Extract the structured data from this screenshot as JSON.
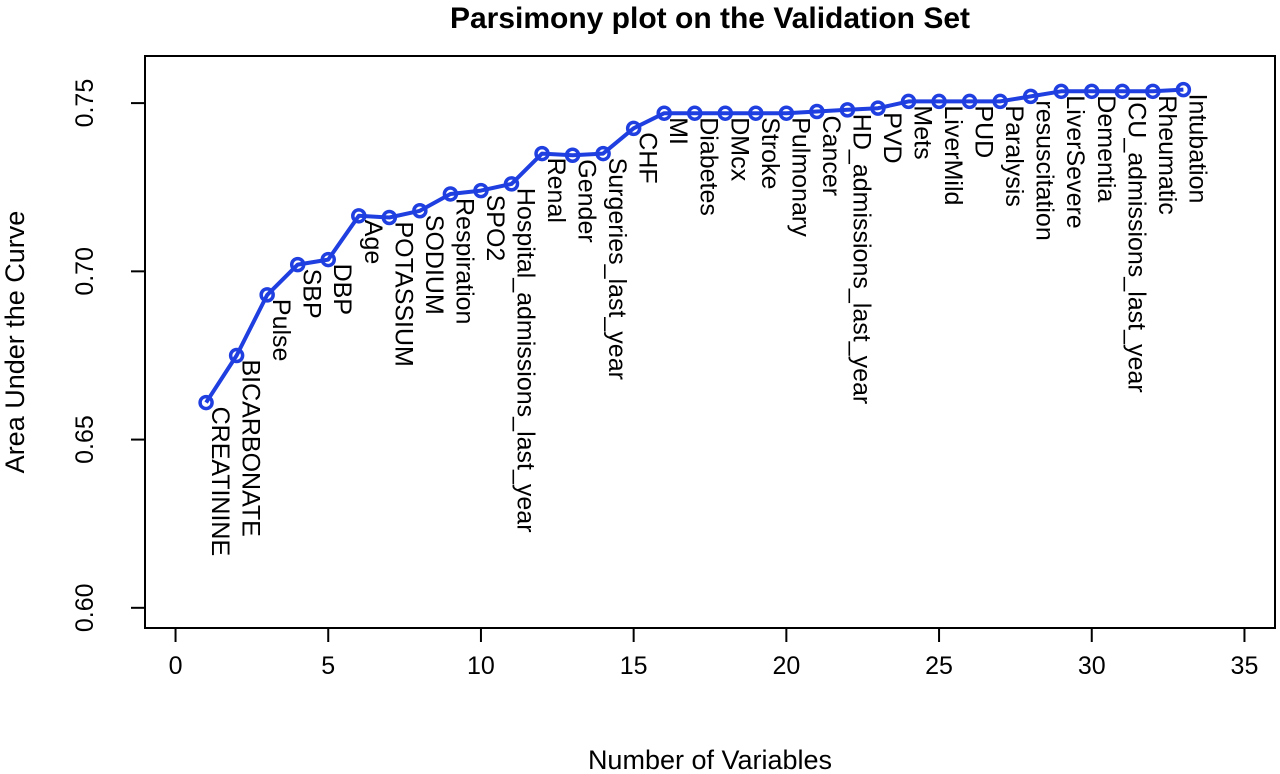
{
  "chart_data": {
    "type": "line",
    "title": "Parsimony plot on the Validation Set",
    "xlabel": "Number of Variables",
    "ylabel": "Area Under the Curve",
    "xlim": [
      -1,
      36
    ],
    "ylim": [
      0.594,
      0.764
    ],
    "xticks": [
      0,
      5,
      10,
      15,
      20,
      25,
      30,
      35
    ],
    "yticks": [
      0.6,
      0.65,
      0.7,
      0.75
    ],
    "ytick_labels": [
      "0.60",
      "0.65",
      "0.70",
      "0.75"
    ],
    "grid": false,
    "series_color": "#1f3fe0",
    "points": [
      {
        "x": 1,
        "y": 0.661,
        "label": "CREATININE"
      },
      {
        "x": 2,
        "y": 0.675,
        "label": "BICARBONATE"
      },
      {
        "x": 3,
        "y": 0.693,
        "label": "Pulse"
      },
      {
        "x": 4,
        "y": 0.702,
        "label": "SBP"
      },
      {
        "x": 5,
        "y": 0.7035,
        "label": "DBP"
      },
      {
        "x": 6,
        "y": 0.7165,
        "label": "Age"
      },
      {
        "x": 7,
        "y": 0.716,
        "label": "POTASSIUM"
      },
      {
        "x": 8,
        "y": 0.718,
        "label": "SODIUM"
      },
      {
        "x": 9,
        "y": 0.723,
        "label": "Respiration"
      },
      {
        "x": 10,
        "y": 0.724,
        "label": "SPO2"
      },
      {
        "x": 11,
        "y": 0.726,
        "label": "Hospital_admissions_last_year"
      },
      {
        "x": 12,
        "y": 0.735,
        "label": "Renal"
      },
      {
        "x": 13,
        "y": 0.7345,
        "label": "Gender"
      },
      {
        "x": 14,
        "y": 0.735,
        "label": "Surgeries_last_year"
      },
      {
        "x": 15,
        "y": 0.7425,
        "label": "CHF"
      },
      {
        "x": 16,
        "y": 0.747,
        "label": "MI"
      },
      {
        "x": 17,
        "y": 0.747,
        "label": "Diabetes"
      },
      {
        "x": 18,
        "y": 0.747,
        "label": "DMcx"
      },
      {
        "x": 19,
        "y": 0.747,
        "label": "Stroke"
      },
      {
        "x": 20,
        "y": 0.747,
        "label": "Pulmonary"
      },
      {
        "x": 21,
        "y": 0.7475,
        "label": "Cancer"
      },
      {
        "x": 22,
        "y": 0.748,
        "label": "HD_admissions_last_year"
      },
      {
        "x": 23,
        "y": 0.7485,
        "label": "PVD"
      },
      {
        "x": 24,
        "y": 0.7505,
        "label": "Mets"
      },
      {
        "x": 25,
        "y": 0.7505,
        "label": "LiverMild"
      },
      {
        "x": 26,
        "y": 0.7505,
        "label": "PUD"
      },
      {
        "x": 27,
        "y": 0.7505,
        "label": "Paralysis"
      },
      {
        "x": 28,
        "y": 0.752,
        "label": "resuscitation"
      },
      {
        "x": 29,
        "y": 0.7535,
        "label": "LiverSevere"
      },
      {
        "x": 30,
        "y": 0.7535,
        "label": "Dementia"
      },
      {
        "x": 31,
        "y": 0.7535,
        "label": "ICU_admissions_last_year"
      },
      {
        "x": 32,
        "y": 0.7535,
        "label": "Rheumatic"
      },
      {
        "x": 33,
        "y": 0.754,
        "label": "Intubation"
      }
    ]
  }
}
